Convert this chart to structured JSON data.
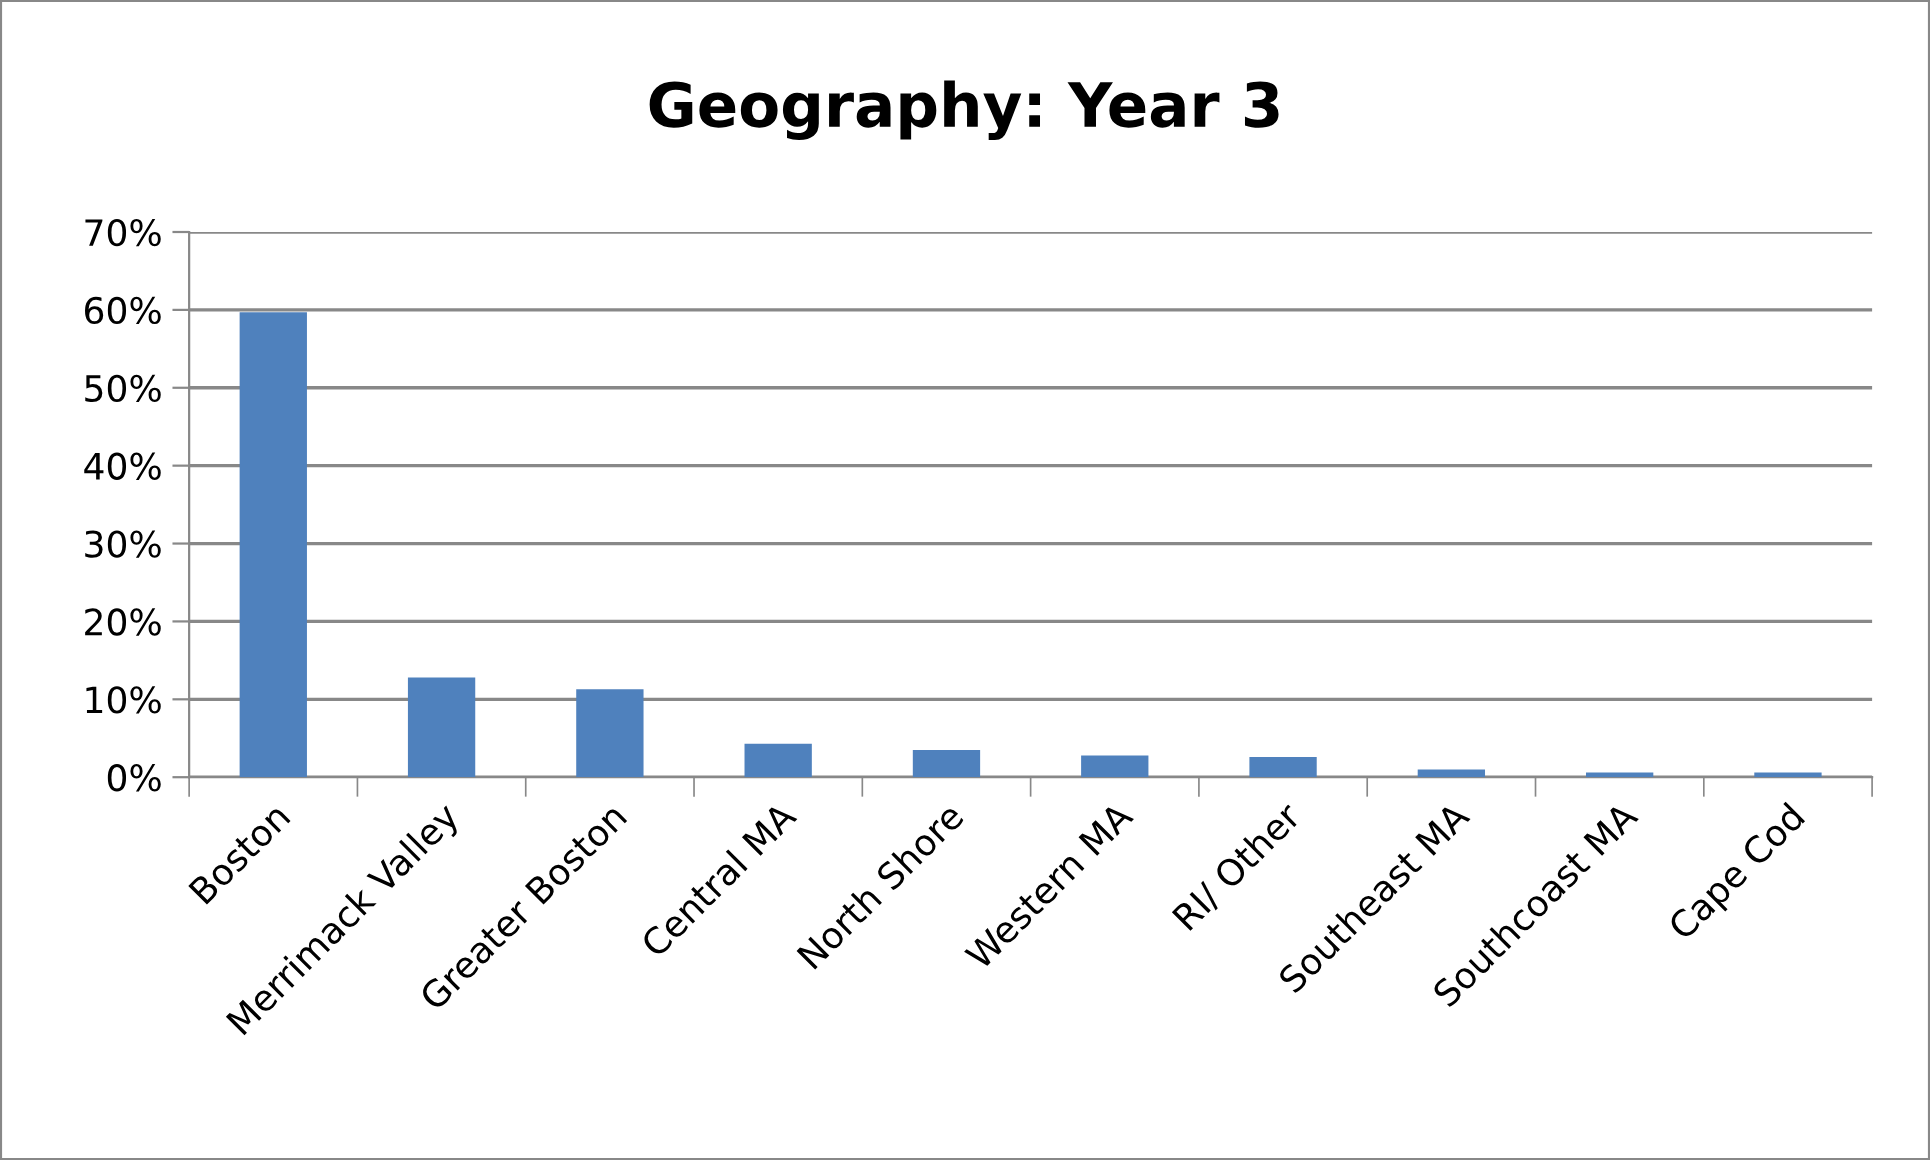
{
  "chart_data": {
    "type": "bar",
    "title": "Geography: Year 3",
    "categories": [
      "Boston",
      "Merrimack Valley",
      "Greater Boston",
      "Central MA",
      "North Shore",
      "Western MA",
      "RI/ Other",
      "Southeast MA",
      "Southcoast MA",
      "Cape Cod"
    ],
    "values": [
      59.7,
      12.8,
      11.3,
      4.3,
      3.5,
      2.8,
      2.6,
      1.0,
      0.6,
      0.6
    ],
    "color": "#4f81bd",
    "ylim": [
      0,
      70
    ],
    "yticks": [
      {
        "value": 0,
        "label": "0%"
      },
      {
        "value": 10,
        "label": "10%"
      },
      {
        "value": 20,
        "label": "20%"
      },
      {
        "value": 30,
        "label": "30%"
      },
      {
        "value": 40,
        "label": "40%"
      },
      {
        "value": 50,
        "label": "50%"
      },
      {
        "value": 60,
        "label": "60%"
      },
      {
        "value": 70,
        "label": "70%"
      }
    ],
    "grid": "y",
    "legend": false
  }
}
